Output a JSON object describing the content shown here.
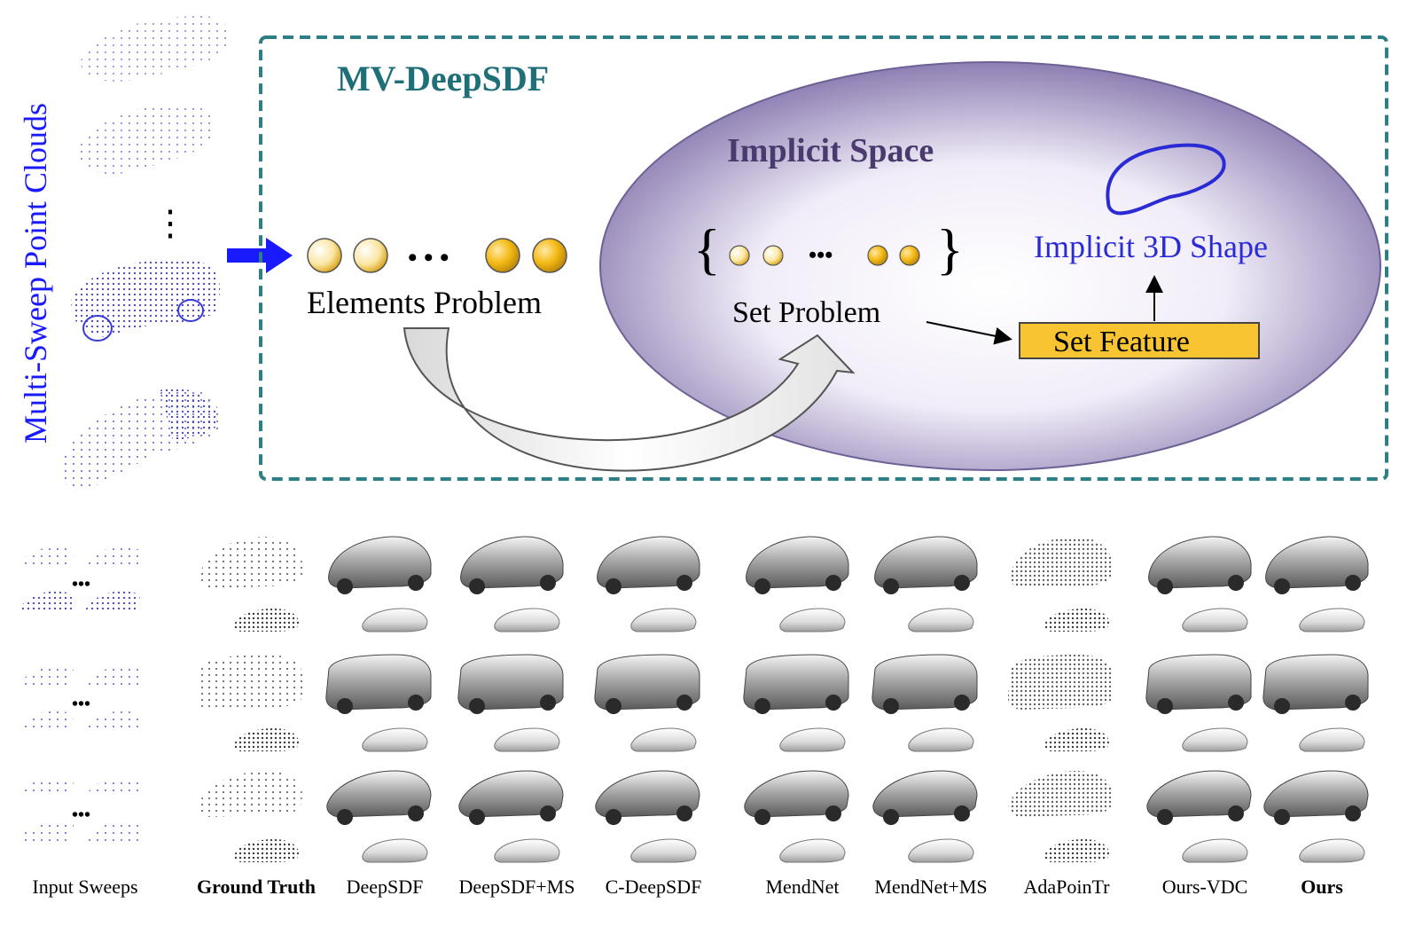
{
  "side_label": "Multi-Sweep Point Clouds",
  "side_ellipsis": "⋮",
  "box_title": "MV-DeepSDF",
  "space_label": "Implicit Space",
  "elements_label": "Elements Problem",
  "elements_ellipsis": "• • •",
  "set_label": "Set Problem",
  "set_braces": {
    "open": "{",
    "close": "}",
    "ellipsis": "•••"
  },
  "feature_label": "Set Feature",
  "shape_label": "Implicit 3D Shape",
  "row_ellipsis": "•••",
  "columns": [
    {
      "label": "Input Sweeps",
      "bold": false
    },
    {
      "label": "Ground Truth",
      "bold": true
    },
    {
      "label": "DeepSDF",
      "bold": false
    },
    {
      "label": "DeepSDF+MS",
      "bold": false
    },
    {
      "label": "C-DeepSDF",
      "bold": false
    },
    {
      "label": "MendNet",
      "bold": false
    },
    {
      "label": "MendNet+MS",
      "bold": false
    },
    {
      "label": "AdaPoinTr",
      "bold": false
    },
    {
      "label": "Ours-VDC",
      "bold": false
    },
    {
      "label": "Ours",
      "bold": true
    }
  ],
  "colors": {
    "box_border": "#2e7e86",
    "title": "#1f6f78",
    "space_fill": "#8e7fb3",
    "space_text": "#4a3a6e",
    "arrow_blue": "#1a1aff",
    "shape_text": "#2b2bd6",
    "point_blue": "#3b3bd9",
    "gold": "#f2b80e",
    "feature_fill": "#f8c431"
  }
}
